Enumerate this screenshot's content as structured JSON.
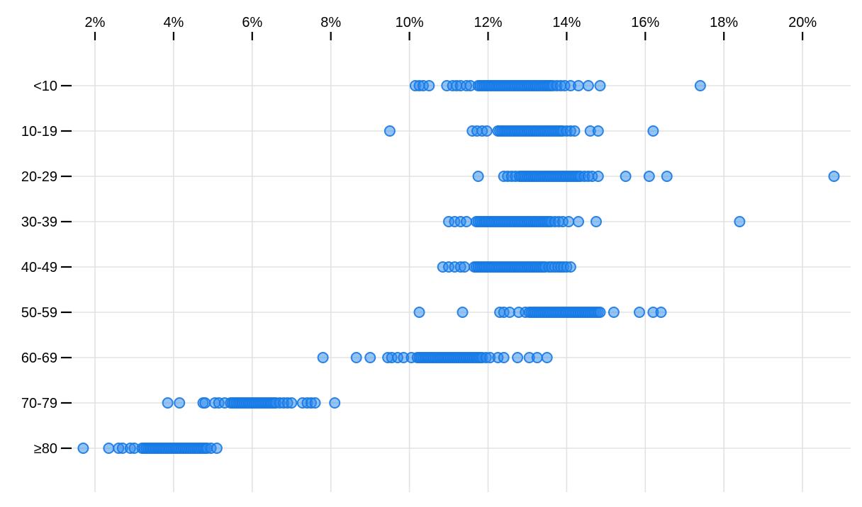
{
  "chart_data": {
    "type": "scatter",
    "subtype": "strip-plot",
    "title": "",
    "xlabel": "",
    "ylabel": "",
    "x_unit": "percent",
    "xlim": [
      0.9,
      21.5
    ],
    "grid": true,
    "legend_position": "none",
    "x_axis_position": "top",
    "x_ticks": [
      {
        "value": 2,
        "label": "2%"
      },
      {
        "value": 4,
        "label": "4%"
      },
      {
        "value": 6,
        "label": "6%"
      },
      {
        "value": 8,
        "label": "8%"
      },
      {
        "value": 10,
        "label": "10%"
      },
      {
        "value": 12,
        "label": "12%"
      },
      {
        "value": 14,
        "label": "14%"
      },
      {
        "value": 16,
        "label": "16%"
      },
      {
        "value": 18,
        "label": "18%"
      },
      {
        "value": 20,
        "label": "20%"
      }
    ],
    "categories": [
      "<10",
      "10-19",
      "20-29",
      "30-39",
      "40-49",
      "50-59",
      "60-69",
      "70-79",
      "≥80"
    ],
    "series": [
      {
        "category": "<10",
        "values": [
          10.15,
          10.25,
          10.35,
          10.5,
          10.95,
          11.1,
          11.2,
          11.3,
          11.45,
          11.55,
          11.75,
          11.8,
          11.85,
          11.9,
          11.95,
          12,
          12.05,
          12.1,
          12.15,
          12.2,
          12.25,
          12.3,
          12.35,
          12.4,
          12.45,
          12.5,
          12.55,
          12.6,
          12.65,
          12.7,
          12.75,
          12.8,
          12.85,
          12.9,
          12.95,
          13,
          13.05,
          13.1,
          13.15,
          13.2,
          13.25,
          13.3,
          13.35,
          13.4,
          13.45,
          13.5,
          13.55,
          13.6,
          13.65,
          13.75,
          13.85,
          13.95,
          14.1,
          14.3,
          14.55,
          14.85,
          17.4
        ]
      },
      {
        "category": "10-19",
        "values": [
          9.5,
          11.6,
          11.72,
          11.85,
          11.97,
          12.25,
          12.3,
          12.35,
          12.4,
          12.45,
          12.5,
          12.55,
          12.6,
          12.65,
          12.7,
          12.75,
          12.8,
          12.85,
          12.9,
          12.95,
          13,
          13.05,
          13.1,
          13.15,
          13.2,
          13.25,
          13.3,
          13.35,
          13.4,
          13.45,
          13.5,
          13.55,
          13.6,
          13.65,
          13.7,
          13.75,
          13.8,
          13.85,
          13.9,
          14,
          14.1,
          14.2,
          14.6,
          14.8,
          16.2
        ]
      },
      {
        "category": "20-29",
        "values": [
          11.75,
          12.4,
          12.5,
          12.6,
          12.7,
          12.8,
          12.85,
          12.9,
          12.95,
          13,
          13.05,
          13.1,
          13.15,
          13.2,
          13.25,
          13.3,
          13.35,
          13.4,
          13.45,
          13.5,
          13.55,
          13.6,
          13.65,
          13.7,
          13.75,
          13.8,
          13.85,
          13.9,
          13.95,
          14,
          14.05,
          14.1,
          14.15,
          14.2,
          14.25,
          14.3,
          14.35,
          14.45,
          14.55,
          14.65,
          14.8,
          15.5,
          16.1,
          16.55,
          20.8
        ]
      },
      {
        "category": "30-39",
        "values": [
          11,
          11.15,
          11.3,
          11.45,
          11.7,
          11.75,
          11.8,
          11.85,
          11.9,
          11.95,
          12,
          12.05,
          12.1,
          12.15,
          12.2,
          12.25,
          12.3,
          12.35,
          12.4,
          12.45,
          12.5,
          12.55,
          12.6,
          12.65,
          12.7,
          12.75,
          12.8,
          12.85,
          12.9,
          12.95,
          13,
          13.05,
          13.1,
          13.15,
          13.2,
          13.25,
          13.3,
          13.35,
          13.4,
          13.45,
          13.5,
          13.55,
          13.6,
          13.7,
          13.8,
          13.9,
          14.05,
          14.3,
          14.75,
          18.4
        ]
      },
      {
        "category": "40-49",
        "values": [
          10.85,
          11,
          11.15,
          11.3,
          11.4,
          11.65,
          11.7,
          11.75,
          11.8,
          11.85,
          11.9,
          11.95,
          12,
          12.05,
          12.1,
          12.15,
          12.2,
          12.25,
          12.3,
          12.35,
          12.4,
          12.45,
          12.5,
          12.55,
          12.6,
          12.65,
          12.7,
          12.75,
          12.8,
          12.85,
          12.9,
          12.95,
          13,
          13.05,
          13.1,
          13.15,
          13.2,
          13.25,
          13.3,
          13.35,
          13.4,
          13.45,
          13.55,
          13.62,
          13.7,
          13.78,
          13.85,
          13.92,
          14,
          14.1
        ]
      },
      {
        "category": "50-59",
        "values": [
          10.25,
          11.35,
          12.3,
          12.4,
          12.55,
          12.78,
          12.95,
          13.05,
          13.1,
          13.15,
          13.2,
          13.25,
          13.3,
          13.35,
          13.4,
          13.45,
          13.5,
          13.55,
          13.6,
          13.65,
          13.7,
          13.75,
          13.8,
          13.85,
          13.9,
          13.95,
          14,
          14.05,
          14.1,
          14.15,
          14.2,
          14.25,
          14.3,
          14.35,
          14.4,
          14.45,
          14.5,
          14.55,
          14.6,
          14.65,
          14.7,
          14.75,
          14.8,
          14.85,
          15.2,
          15.85,
          16.2,
          16.4
        ]
      },
      {
        "category": "60-69",
        "values": [
          7.8,
          8.65,
          9,
          9.45,
          9.55,
          9.7,
          9.85,
          10.05,
          10.2,
          10.25,
          10.3,
          10.35,
          10.4,
          10.45,
          10.5,
          10.55,
          10.6,
          10.65,
          10.7,
          10.75,
          10.8,
          10.85,
          10.9,
          10.95,
          11,
          11.05,
          11.1,
          11.15,
          11.2,
          11.25,
          11.3,
          11.35,
          11.4,
          11.45,
          11.5,
          11.55,
          11.6,
          11.65,
          11.7,
          11.75,
          11.8,
          11.85,
          11.95,
          12.05,
          12.25,
          12.4,
          12.75,
          13.05,
          13.25,
          13.5
        ]
      },
      {
        "category": "70-79",
        "values": [
          3.85,
          4.15,
          4.75,
          4.8,
          5.05,
          5.15,
          5.3,
          5.45,
          5.5,
          5.55,
          5.6,
          5.65,
          5.7,
          5.75,
          5.8,
          5.85,
          5.9,
          5.95,
          6,
          6.05,
          6.1,
          6.15,
          6.2,
          6.25,
          6.3,
          6.35,
          6.4,
          6.45,
          6.5,
          6.55,
          6.6,
          6.7,
          6.8,
          6.9,
          7,
          7.28,
          7.4,
          7.5,
          7.6,
          8.1
        ]
      },
      {
        "category": "≥80",
        "values": [
          1.7,
          2.35,
          2.6,
          2.7,
          2.9,
          3,
          3.2,
          3.25,
          3.3,
          3.35,
          3.4,
          3.45,
          3.5,
          3.55,
          3.6,
          3.65,
          3.7,
          3.75,
          3.8,
          3.85,
          3.9,
          3.95,
          4,
          4.05,
          4.1,
          4.15,
          4.2,
          4.25,
          4.3,
          4.35,
          4.4,
          4.45,
          4.5,
          4.55,
          4.6,
          4.65,
          4.7,
          4.75,
          4.8,
          4.85,
          4.95,
          5.1
        ]
      }
    ],
    "colors": {
      "dot_fill": "#2b8af0",
      "dot_stroke": "#1679e3",
      "grid": "#e2e2e2",
      "axis_text": "#000000",
      "tick_mark": "#000000",
      "background": "#ffffff"
    }
  }
}
